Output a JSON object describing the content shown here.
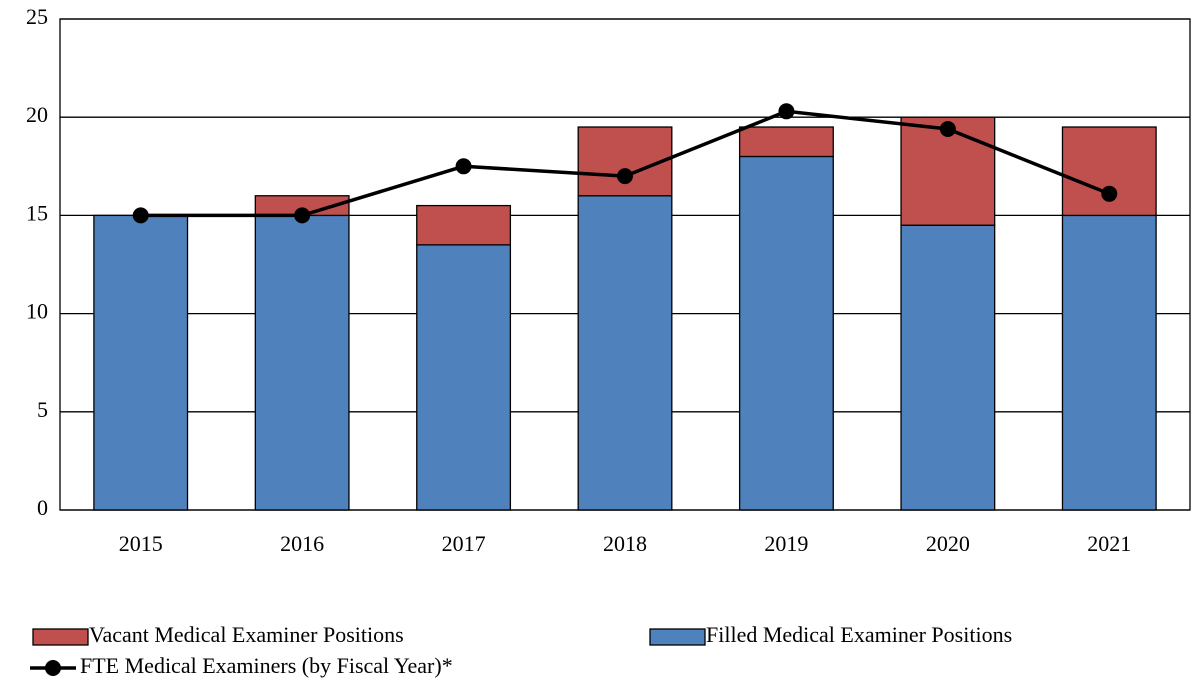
{
  "chart_data": {
    "type": "bar",
    "stacked": true,
    "categories": [
      "2015",
      "2016",
      "2017",
      "2018",
      "2019",
      "2020",
      "2021"
    ],
    "series": [
      {
        "name": "Filled Medical Examiner Positions",
        "type": "bar",
        "color": "#4f81bd",
        "values": [
          15,
          15,
          13.5,
          16,
          18,
          14.5,
          15
        ]
      },
      {
        "name": "Vacant Medical Examiner Positions",
        "type": "bar",
        "color": "#c0504d",
        "values": [
          0,
          1,
          2,
          3.5,
          1.5,
          5.5,
          4.5
        ]
      },
      {
        "name": "FTE Medical Examiners (by Fiscal Year)*",
        "type": "line",
        "color": "#000000",
        "values": [
          15,
          15,
          17.5,
          17,
          20.3,
          19.4,
          16.1
        ]
      }
    ],
    "ylim": [
      0,
      25
    ],
    "yticks": [
      0,
      5,
      10,
      15,
      20,
      25
    ],
    "grid": true,
    "legend": "bottom"
  }
}
